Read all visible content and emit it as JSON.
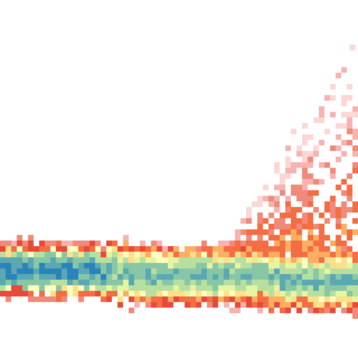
{
  "image": {
    "description_free": true,
    "palette": {
      "background": "#ffffff",
      "blue": "#2b83ba",
      "teal": "#5aa8b4",
      "seafoam": "#88c7a6",
      "mint": "#b7e0a0",
      "pale-yellow": "#e6f5a0",
      "cream": "#ffffbf",
      "yellow": "#fee08b",
      "orange": "#fdae61",
      "orange-red": "#f46d43",
      "red": "#e84a3a",
      "salmon": "#f08a7a",
      "pink": "#f6b3b0",
      "light-pink": "#fbd7d5"
    }
  }
}
